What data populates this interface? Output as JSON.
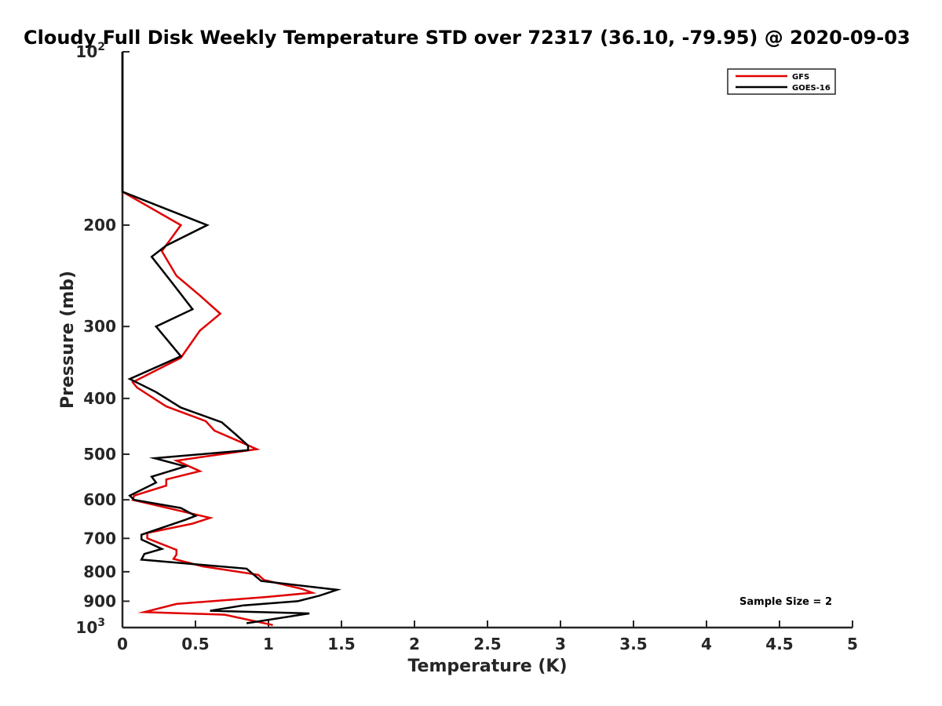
{
  "chart_data": {
    "type": "line",
    "title": "Cloudy Full Disk Weekly Temperature STD over 72317 (36.10, -79.95) @ 2020-09-03",
    "xlabel": "Temperature (K)",
    "ylabel": "Pressure (mb)",
    "xlim": [
      0,
      5
    ],
    "ylim": [
      100,
      1000
    ],
    "y_scale": "log",
    "y_reversed": true,
    "x_ticks": [
      {
        "value": 0,
        "label": "0"
      },
      {
        "value": 0.5,
        "label": "0.5"
      },
      {
        "value": 1,
        "label": "1"
      },
      {
        "value": 1.5,
        "label": "1.5"
      },
      {
        "value": 2,
        "label": "2"
      },
      {
        "value": 2.5,
        "label": "2.5"
      },
      {
        "value": 3,
        "label": "3"
      },
      {
        "value": 3.5,
        "label": "3.5"
      },
      {
        "value": 4,
        "label": "4"
      },
      {
        "value": 4.5,
        "label": "4.5"
      },
      {
        "value": 5,
        "label": "5"
      }
    ],
    "y_ticks": [
      {
        "value": 100,
        "label": "10",
        "sup": "2"
      },
      {
        "value": 200,
        "label": "200"
      },
      {
        "value": 300,
        "label": "300"
      },
      {
        "value": 400,
        "label": "400"
      },
      {
        "value": 500,
        "label": "500"
      },
      {
        "value": 600,
        "label": "600"
      },
      {
        "value": 700,
        "label": "700"
      },
      {
        "value": 800,
        "label": "800"
      },
      {
        "value": 900,
        "label": "900"
      },
      {
        "value": 1000,
        "label": "10",
        "sup": "3"
      }
    ],
    "grid": false,
    "legend_position": "top-right",
    "annotation": "Sample Size = 2",
    "series": [
      {
        "name": "GFS",
        "color": "#e00000",
        "points": [
          [
            0,
            100
          ],
          [
            0,
            175
          ],
          [
            0.4,
            200
          ],
          [
            0.27,
            222
          ],
          [
            0.37,
            245
          ],
          [
            0.53,
            265
          ],
          [
            0.67,
            285
          ],
          [
            0.53,
            305
          ],
          [
            0.4,
            340
          ],
          [
            0.07,
            375
          ],
          [
            0.1,
            383
          ],
          [
            0.3,
            413
          ],
          [
            0.57,
            438
          ],
          [
            0.63,
            455
          ],
          [
            0.8,
            475
          ],
          [
            0.92,
            490
          ],
          [
            0.37,
            513
          ],
          [
            0.53,
            535
          ],
          [
            0.3,
            553
          ],
          [
            0.3,
            567
          ],
          [
            0.08,
            590
          ],
          [
            0.07,
            600
          ],
          [
            0.37,
            625
          ],
          [
            0.6,
            645
          ],
          [
            0.48,
            660
          ],
          [
            0.17,
            685
          ],
          [
            0.17,
            700
          ],
          [
            0.37,
            733
          ],
          [
            0.37,
            747
          ],
          [
            0.35,
            760
          ],
          [
            0.55,
            783
          ],
          [
            0.93,
            810
          ],
          [
            0.97,
            827
          ],
          [
            1.23,
            857
          ],
          [
            1.3,
            870
          ],
          [
            0.98,
            885
          ],
          [
            0.37,
            910
          ],
          [
            0.15,
            940
          ],
          [
            0.7,
            950
          ],
          [
            1.03,
            990
          ]
        ]
      },
      {
        "name": "GOES-16",
        "color": "#000000",
        "points": [
          [
            0,
            100
          ],
          [
            0,
            175
          ],
          [
            0.58,
            200
          ],
          [
            0.3,
            217
          ],
          [
            0.2,
            227
          ],
          [
            0.33,
            250
          ],
          [
            0.48,
            280
          ],
          [
            0.23,
            300
          ],
          [
            0.4,
            338
          ],
          [
            0.05,
            370
          ],
          [
            0.23,
            390
          ],
          [
            0.4,
            415
          ],
          [
            0.68,
            440
          ],
          [
            0.78,
            463
          ],
          [
            0.86,
            483
          ],
          [
            0.86,
            492
          ],
          [
            0.22,
            508
          ],
          [
            0.43,
            525
          ],
          [
            0.2,
            547
          ],
          [
            0.23,
            560
          ],
          [
            0.05,
            590
          ],
          [
            0.08,
            600
          ],
          [
            0.4,
            620
          ],
          [
            0.5,
            640
          ],
          [
            0.43,
            650
          ],
          [
            0.13,
            690
          ],
          [
            0.13,
            703
          ],
          [
            0.27,
            730
          ],
          [
            0.15,
            745
          ],
          [
            0.13,
            762
          ],
          [
            0.85,
            790
          ],
          [
            0.95,
            830
          ],
          [
            1.47,
            860
          ],
          [
            1.35,
            880
          ],
          [
            1.2,
            900
          ],
          [
            0.83,
            915
          ],
          [
            0.6,
            935
          ],
          [
            1.28,
            945
          ],
          [
            0.85,
            983
          ]
        ]
      }
    ]
  }
}
